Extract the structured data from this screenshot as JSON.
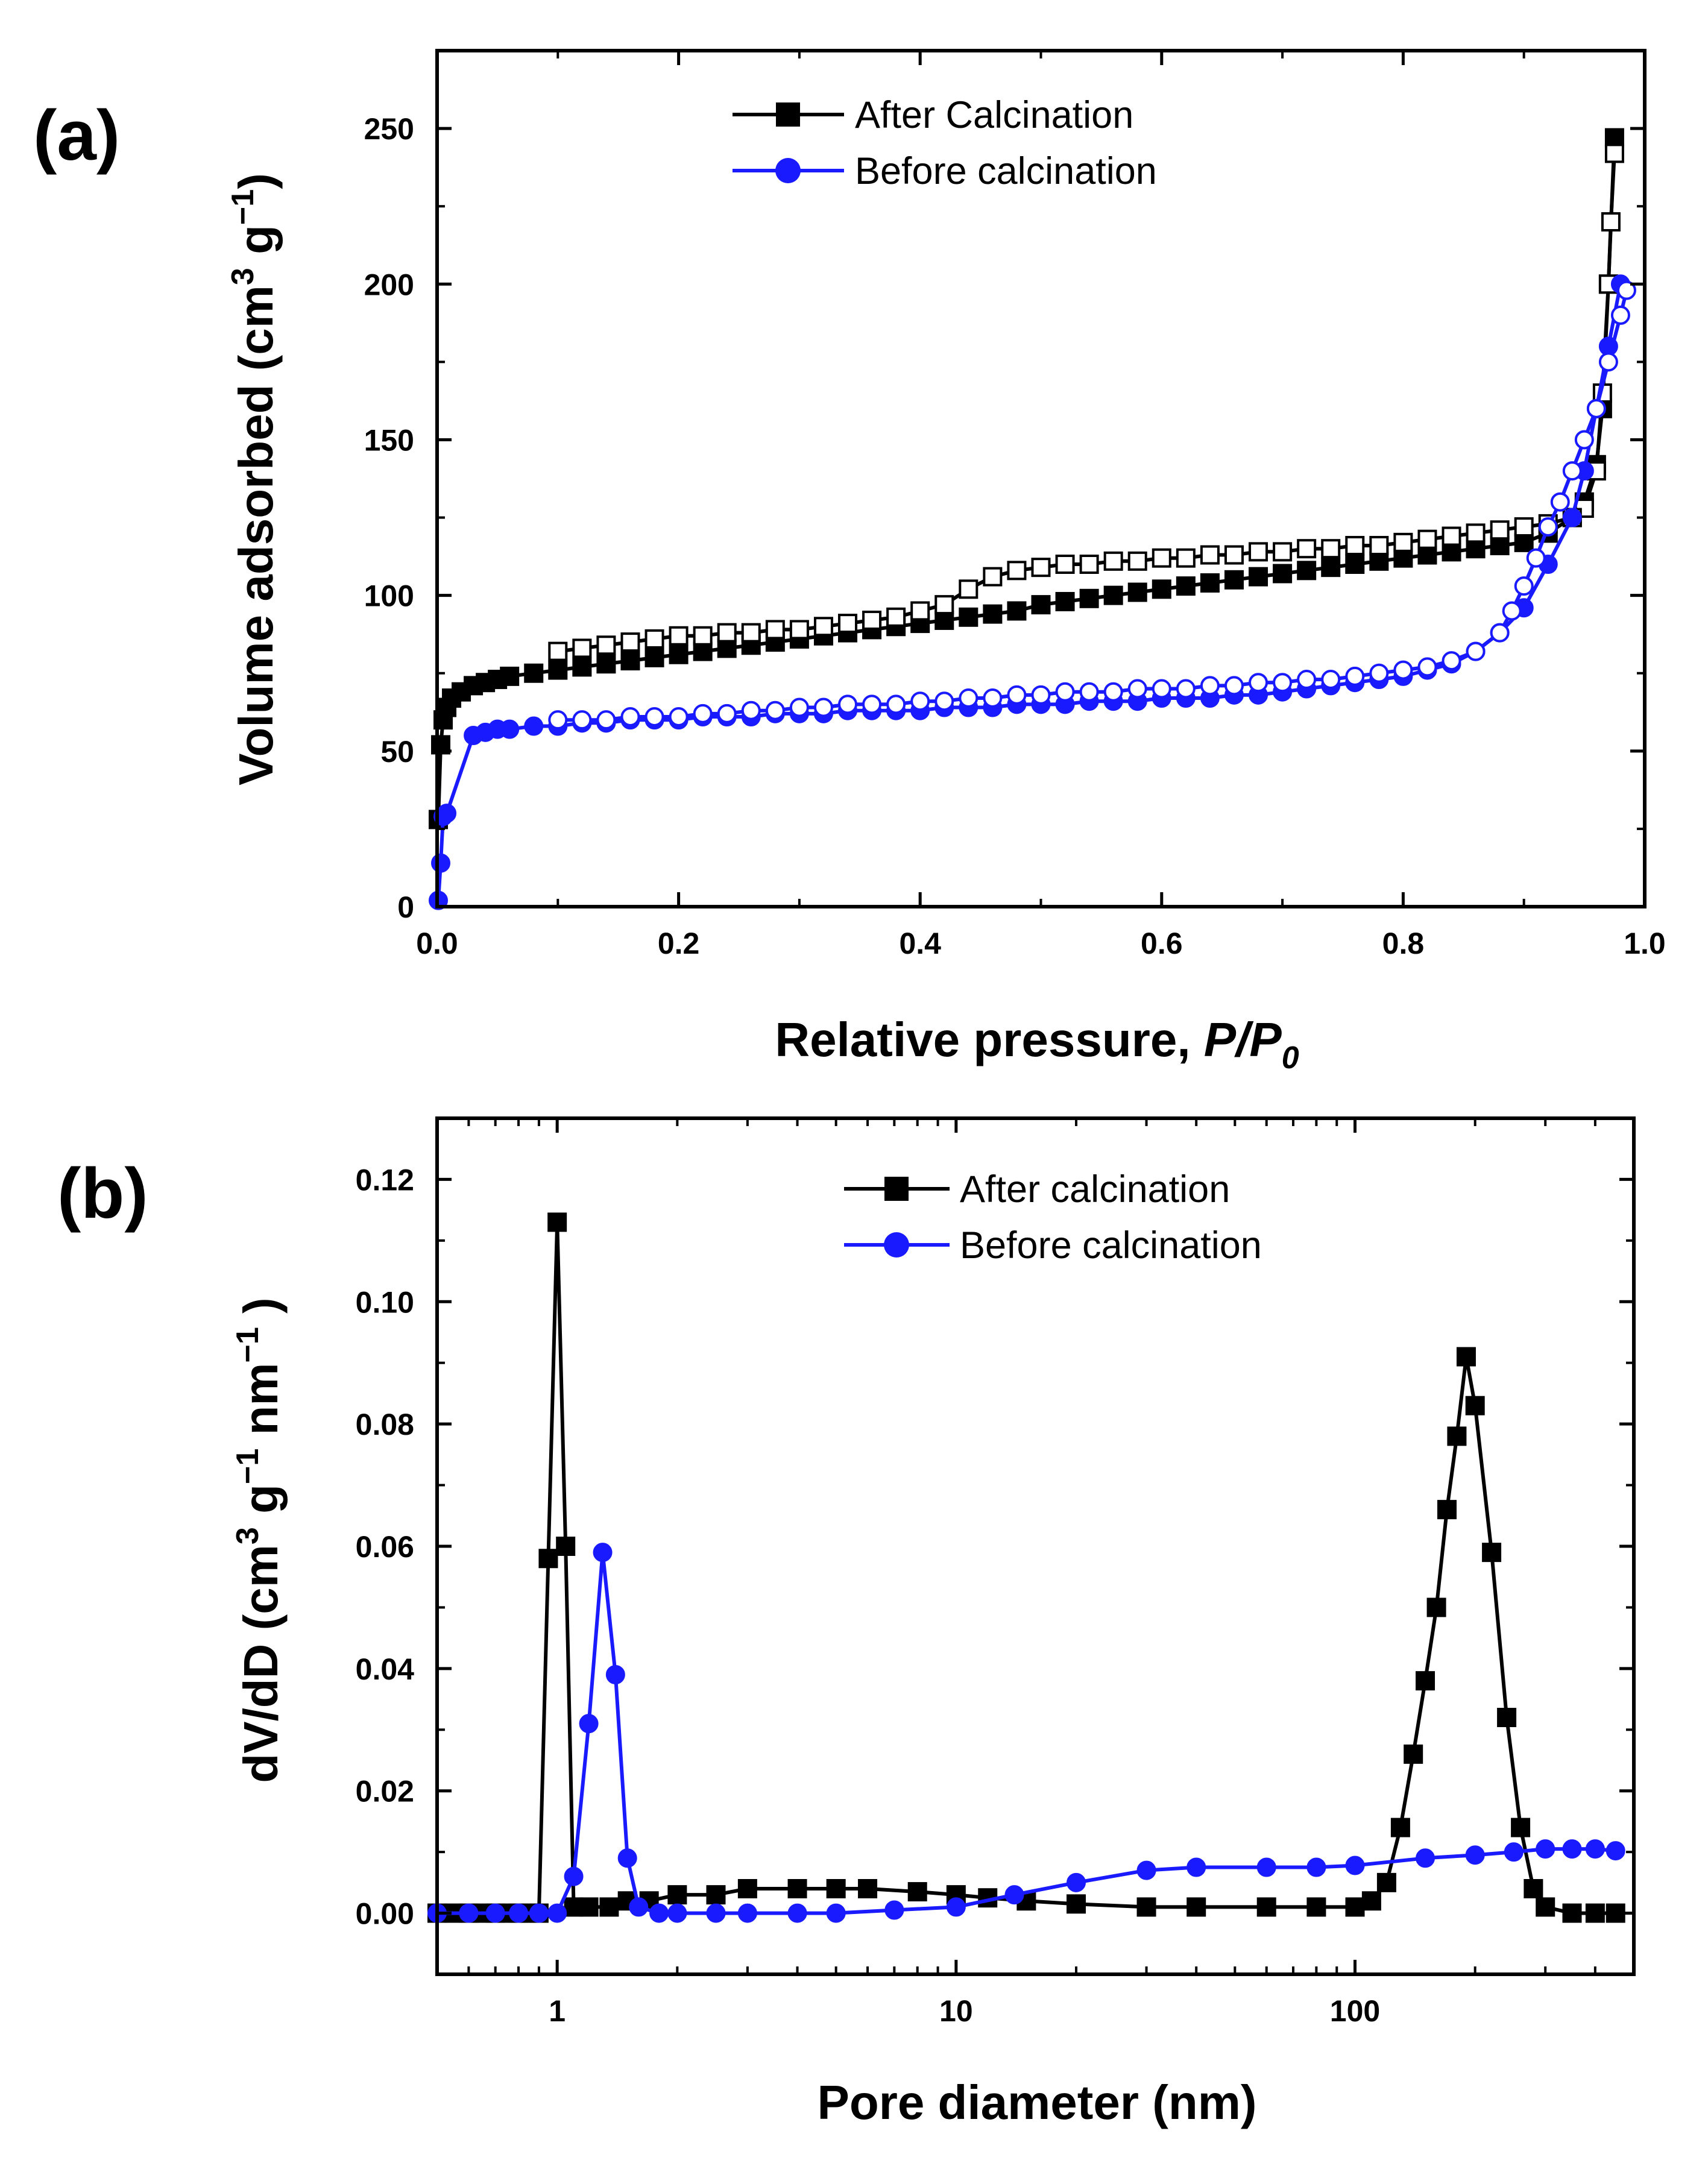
{
  "colors": {
    "after": "#000000",
    "before": "#1a1aff"
  },
  "chart_data": [
    {
      "panel_label": "(a)",
      "type": "line",
      "xlabel_main": "Relative pressure, ",
      "xlabel_italic": "P/P",
      "xlabel_sub": "0",
      "ylabel_main": "Volume adsorbed (cm",
      "ylabel_sup1": "3",
      "ylabel_mid": " g",
      "ylabel_sup2": "−1",
      "ylabel_end": ")",
      "xlim": [
        0,
        1.0
      ],
      "ylim": [
        0,
        275
      ],
      "xticks": [
        0.0,
        0.2,
        0.4,
        0.6,
        0.8,
        1.0
      ],
      "xtick_labels": [
        "0.0",
        "0.2",
        "0.4",
        "0.6",
        "0.8",
        "1.0"
      ],
      "yticks": [
        0,
        50,
        100,
        150,
        200,
        250
      ],
      "ytick_labels": [
        "0",
        "50",
        "100",
        "150",
        "200",
        "250"
      ],
      "legend": [
        "After Calcination",
        "Before calcination"
      ],
      "series": [
        {
          "name": "After Calcination - adsorption",
          "color": "after",
          "marker": "square",
          "filled": true,
          "x": [
            0.001,
            0.003,
            0.005,
            0.008,
            0.012,
            0.02,
            0.03,
            0.04,
            0.05,
            0.06,
            0.08,
            0.1,
            0.12,
            0.14,
            0.16,
            0.18,
            0.2,
            0.22,
            0.24,
            0.26,
            0.28,
            0.3,
            0.32,
            0.34,
            0.36,
            0.38,
            0.4,
            0.42,
            0.44,
            0.46,
            0.48,
            0.5,
            0.52,
            0.54,
            0.56,
            0.58,
            0.6,
            0.62,
            0.64,
            0.66,
            0.68,
            0.7,
            0.72,
            0.74,
            0.76,
            0.78,
            0.8,
            0.82,
            0.84,
            0.86,
            0.88,
            0.9,
            0.92,
            0.94,
            0.95,
            0.96,
            0.965,
            0.97,
            0.975
          ],
          "y": [
            28,
            52,
            60,
            64,
            67,
            69,
            71,
            72,
            73,
            74,
            75,
            76,
            77,
            78,
            79,
            80,
            81,
            82,
            83,
            84,
            85,
            86,
            87,
            88,
            89,
            90,
            91,
            92,
            93,
            94,
            95,
            97,
            98,
            99,
            100,
            101,
            102,
            103,
            104,
            105,
            106,
            107,
            108,
            109,
            110,
            111,
            112,
            113,
            114,
            115,
            116,
            117,
            120,
            125,
            130,
            142,
            160,
            200,
            247
          ]
        },
        {
          "name": "After Calcination - desorption",
          "color": "after",
          "marker": "square",
          "filled": false,
          "x": [
            0.975,
            0.972,
            0.97,
            0.965,
            0.96,
            0.95,
            0.94,
            0.92,
            0.9,
            0.88,
            0.86,
            0.84,
            0.82,
            0.8,
            0.78,
            0.76,
            0.74,
            0.72,
            0.7,
            0.68,
            0.66,
            0.64,
            0.62,
            0.6,
            0.58,
            0.56,
            0.54,
            0.52,
            0.5,
            0.48,
            0.46,
            0.44,
            0.42,
            0.4,
            0.38,
            0.36,
            0.34,
            0.32,
            0.3,
            0.28,
            0.26,
            0.24,
            0.22,
            0.2,
            0.18,
            0.16,
            0.14,
            0.12,
            0.1
          ],
          "y": [
            242,
            220,
            200,
            165,
            140,
            128,
            125,
            123,
            122,
            121,
            120,
            119,
            118,
            117,
            116,
            116,
            115,
            115,
            114,
            114,
            113,
            113,
            112,
            112,
            111,
            111,
            110,
            110,
            109,
            108,
            106,
            102,
            97,
            95,
            93,
            92,
            91,
            90,
            89,
            89,
            88,
            88,
            87,
            87,
            86,
            85,
            84,
            83,
            82
          ]
        },
        {
          "name": "Before calcination - adsorption",
          "color": "before",
          "marker": "circle",
          "filled": true,
          "x": [
            0.001,
            0.003,
            0.005,
            0.008,
            0.03,
            0.04,
            0.05,
            0.06,
            0.08,
            0.1,
            0.12,
            0.14,
            0.16,
            0.18,
            0.2,
            0.22,
            0.24,
            0.26,
            0.28,
            0.3,
            0.32,
            0.34,
            0.36,
            0.38,
            0.4,
            0.42,
            0.44,
            0.46,
            0.48,
            0.5,
            0.52,
            0.54,
            0.56,
            0.58,
            0.6,
            0.62,
            0.64,
            0.66,
            0.68,
            0.7,
            0.72,
            0.74,
            0.76,
            0.78,
            0.8,
            0.82,
            0.84,
            0.86,
            0.88,
            0.9,
            0.92,
            0.94,
            0.95,
            0.96,
            0.97,
            0.98
          ],
          "y": [
            2,
            14,
            29,
            30,
            55,
            56,
            57,
            57,
            58,
            58,
            59,
            59,
            60,
            60,
            60,
            61,
            61,
            61,
            62,
            62,
            62,
            63,
            63,
            63,
            63,
            64,
            64,
            64,
            65,
            65,
            65,
            66,
            66,
            66,
            67,
            67,
            67,
            68,
            68,
            69,
            70,
            71,
            72,
            73,
            74,
            76,
            78,
            82,
            88,
            96,
            110,
            125,
            140,
            160,
            180,
            200
          ]
        },
        {
          "name": "Before calcination - desorption",
          "color": "before",
          "marker": "circle",
          "filled": false,
          "x": [
            0.985,
            0.98,
            0.97,
            0.96,
            0.95,
            0.94,
            0.93,
            0.92,
            0.91,
            0.9,
            0.89,
            0.88,
            0.86,
            0.84,
            0.82,
            0.8,
            0.78,
            0.76,
            0.74,
            0.72,
            0.7,
            0.68,
            0.66,
            0.64,
            0.62,
            0.6,
            0.58,
            0.56,
            0.54,
            0.52,
            0.5,
            0.48,
            0.46,
            0.44,
            0.42,
            0.4,
            0.38,
            0.36,
            0.34,
            0.32,
            0.3,
            0.28,
            0.26,
            0.24,
            0.22,
            0.2,
            0.18,
            0.16,
            0.14,
            0.12,
            0.1
          ],
          "y": [
            198,
            190,
            175,
            160,
            150,
            140,
            130,
            122,
            112,
            103,
            95,
            88,
            82,
            79,
            77,
            76,
            75,
            74,
            73,
            73,
            72,
            72,
            71,
            71,
            70,
            70,
            70,
            69,
            69,
            69,
            68,
            68,
            67,
            67,
            66,
            66,
            65,
            65,
            65,
            64,
            64,
            63,
            63,
            62,
            62,
            61,
            61,
            61,
            60,
            60,
            60
          ]
        }
      ]
    },
    {
      "panel_label": "(b)",
      "type": "line",
      "x_scale": "log",
      "xlabel": "Pore diameter (nm)",
      "ylabel_main": "dV/dD (cm",
      "ylabel_sup1": "3",
      "ylabel_mid": " g",
      "ylabel_sup2": "−1",
      "ylabel_mid2": " nm",
      "ylabel_sup3": "−1",
      "ylabel_end": " )",
      "xlim": [
        0.5,
        500
      ],
      "ylim": [
        -0.01,
        0.13
      ],
      "xticks": [
        1,
        10,
        100
      ],
      "xtick_labels": [
        "1",
        "10",
        "100"
      ],
      "yticks": [
        0.0,
        0.02,
        0.04,
        0.06,
        0.08,
        0.1,
        0.12
      ],
      "ytick_labels": [
        "0.00",
        "0.02",
        "0.04",
        "0.06",
        "0.08",
        "0.10",
        "0.12"
      ],
      "legend": [
        "After calcination",
        "Before calcination"
      ],
      "series": [
        {
          "name": "After calcination",
          "color": "after",
          "marker": "square",
          "filled": true,
          "x": [
            0.5,
            0.55,
            0.6,
            0.65,
            0.7,
            0.75,
            0.8,
            0.85,
            0.9,
            0.95,
            1.0,
            1.05,
            1.1,
            1.2,
            1.35,
            1.5,
            1.7,
            2.0,
            2.5,
            3.0,
            4.0,
            5.0,
            6.0,
            8.0,
            10.0,
            12.0,
            15.0,
            20.0,
            30.0,
            40.0,
            60.0,
            80.0,
            100.0,
            110.0,
            120.0,
            130.0,
            140.0,
            150.0,
            160.0,
            170.0,
            180.0,
            190.0,
            200.0,
            220.0,
            240.0,
            260.0,
            280.0,
            300.0,
            350.0,
            400.0,
            450.0
          ],
          "y": [
            0.0,
            0.0,
            0.0,
            0.0,
            0.0,
            0.0,
            0.0,
            0.0,
            0.0,
            0.058,
            0.113,
            0.06,
            0.001,
            0.001,
            0.001,
            0.002,
            0.002,
            0.003,
            0.003,
            0.004,
            0.004,
            0.004,
            0.004,
            0.0035,
            0.003,
            0.0025,
            0.002,
            0.0015,
            0.001,
            0.001,
            0.001,
            0.001,
            0.001,
            0.002,
            0.005,
            0.014,
            0.026,
            0.038,
            0.05,
            0.066,
            0.078,
            0.091,
            0.083,
            0.059,
            0.032,
            0.014,
            0.004,
            0.001,
            0.0,
            0.0,
            0.0
          ]
        },
        {
          "name": "Before calcination",
          "color": "before",
          "marker": "circle",
          "filled": true,
          "x": [
            0.5,
            0.6,
            0.7,
            0.8,
            0.9,
            1.0,
            1.1,
            1.2,
            1.3,
            1.4,
            1.5,
            1.6,
            1.8,
            2.0,
            2.5,
            3.0,
            4.0,
            5.0,
            7.0,
            10.0,
            14.0,
            20.0,
            30.0,
            40.0,
            60.0,
            80.0,
            100.0,
            150.0,
            200.0,
            250.0,
            300.0,
            350.0,
            400.0,
            450.0
          ],
          "y": [
            0.0,
            0.0,
            0.0,
            0.0,
            0.0,
            0.0,
            0.006,
            0.031,
            0.059,
            0.039,
            0.009,
            0.001,
            0.0,
            0.0,
            0.0,
            0.0,
            0.0,
            0.0,
            0.0005,
            0.001,
            0.003,
            0.005,
            0.007,
            0.0075,
            0.0075,
            0.0075,
            0.0078,
            0.009,
            0.0095,
            0.01,
            0.0105,
            0.0105,
            0.0105,
            0.0102
          ]
        }
      ]
    }
  ]
}
